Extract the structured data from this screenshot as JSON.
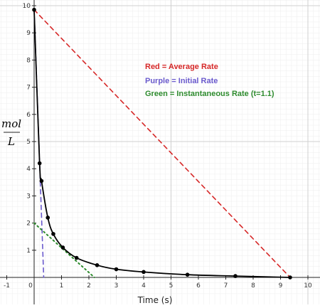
{
  "chart_data": {
    "type": "line",
    "xlabel": "Time (s)",
    "ylabel_num": "mol",
    "ylabel_den": "L",
    "xlim": [
      -1.2,
      10.5
    ],
    "ylim": [
      -0.7,
      10.2
    ],
    "x_ticks": [
      -1,
      0,
      1,
      2,
      3,
      4,
      5,
      6,
      7,
      8,
      9,
      10
    ],
    "y_ticks": [
      1,
      2,
      3,
      4,
      5,
      6,
      7,
      8,
      9,
      10
    ],
    "grid": true,
    "legend": [
      {
        "label": "Red = Average Rate",
        "color": "#d62828"
      },
      {
        "label": "Purple = Initial Rate",
        "color": "#6a5acd"
      },
      {
        "label": "Green = Instantaneous Rate (t=1.1)",
        "color": "#2e8b2e"
      }
    ],
    "series": [
      {
        "type": "curve_with_points",
        "color": "#000000",
        "points": [
          {
            "x": 0.0,
            "y": 9.85
          },
          {
            "x": 0.2,
            "y": 4.2
          },
          {
            "x": 0.27,
            "y": 3.55
          },
          {
            "x": 0.5,
            "y": 2.2
          },
          {
            "x": 0.7,
            "y": 1.6
          },
          {
            "x": 1.05,
            "y": 1.1
          },
          {
            "x": 1.55,
            "y": 0.72
          },
          {
            "x": 2.3,
            "y": 0.45
          },
          {
            "x": 3.0,
            "y": 0.3
          },
          {
            "x": 4.0,
            "y": 0.2
          },
          {
            "x": 5.6,
            "y": 0.1
          },
          {
            "x": 7.35,
            "y": 0.05
          },
          {
            "x": 9.35,
            "y": 0.0
          }
        ]
      },
      {
        "type": "dashed_line",
        "color": "#d62828",
        "from": {
          "x": 0.0,
          "y": 9.85
        },
        "to": {
          "x": 9.35,
          "y": 0.0
        }
      },
      {
        "type": "dashed_line",
        "color": "#6a5acd",
        "from": {
          "x": 0.0,
          "y": 9.85
        },
        "to": {
          "x": 0.35,
          "y": 0.0
        }
      },
      {
        "type": "dotted_line",
        "color": "#2e8b2e",
        "from": {
          "x": 0.0,
          "y": 2.0
        },
        "to": {
          "x": 2.2,
          "y": 0.0
        }
      }
    ]
  }
}
